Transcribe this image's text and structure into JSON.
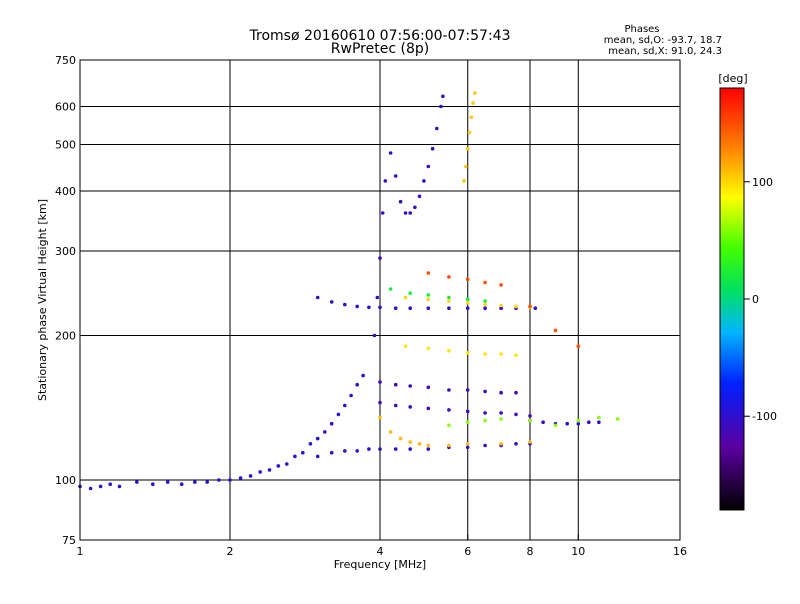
{
  "chart_data": {
    "type": "scatter",
    "title": "Tromsø 20160610 07:56:00-07:57:43",
    "subtitle": "RwPretec (8p)",
    "xlabel": "Frequency [MHz]",
    "ylabel": "Stationary phase Virtual Height [km]",
    "x_scale": "log",
    "y_scale": "log",
    "xlim": [
      1,
      16
    ],
    "ylim": [
      75,
      750
    ],
    "x_ticks": [
      1,
      2,
      4,
      6,
      8,
      10,
      16
    ],
    "x_tick_labels": [
      "1",
      "2",
      "4",
      "6",
      "8",
      "10",
      "16"
    ],
    "y_ticks": [
      75,
      100,
      200,
      300,
      400,
      500,
      600,
      750
    ],
    "y_tick_labels": [
      "75",
      "100",
      "200",
      "300",
      "400",
      "500",
      "600",
      "750"
    ],
    "x_grid": [
      2,
      4,
      6,
      8,
      10
    ],
    "y_grid": [
      100,
      200,
      300,
      400,
      500,
      600
    ],
    "info_box": {
      "heading": "Phases",
      "line_o": "mean, sd,O: -93.7, 18.7",
      "line_x": "mean, sd,X:  91.0, 24.3"
    },
    "colorbar": {
      "label": "[deg]",
      "range": [
        -180,
        180
      ],
      "ticks": [
        100,
        0,
        -100
      ],
      "tick_labels": [
        "100",
        "0",
        "-100"
      ]
    },
    "series": [
      {
        "color_phase": -95,
        "points": [
          [
            1.0,
            97
          ],
          [
            1.05,
            96
          ],
          [
            1.1,
            97
          ],
          [
            1.15,
            98
          ],
          [
            1.2,
            97
          ],
          [
            1.3,
            99
          ],
          [
            1.4,
            98
          ],
          [
            1.5,
            99
          ],
          [
            1.6,
            98
          ],
          [
            1.7,
            99
          ],
          [
            1.8,
            99
          ],
          [
            1.9,
            100
          ],
          [
            2.0,
            100
          ],
          [
            2.1,
            101
          ],
          [
            2.2,
            102
          ],
          [
            2.3,
            104
          ],
          [
            2.4,
            105
          ],
          [
            2.5,
            107
          ],
          [
            2.6,
            108
          ],
          [
            2.7,
            112
          ],
          [
            2.8,
            114
          ],
          [
            2.9,
            119
          ],
          [
            3.0,
            122
          ],
          [
            3.1,
            126
          ],
          [
            3.2,
            131
          ],
          [
            3.3,
            137
          ],
          [
            3.4,
            143
          ],
          [
            3.5,
            150
          ],
          [
            3.6,
            158
          ],
          [
            3.7,
            165
          ]
        ]
      },
      {
        "color_phase": -100,
        "points": [
          [
            3.0,
            112
          ],
          [
            3.2,
            114
          ],
          [
            3.4,
            115
          ],
          [
            3.6,
            115
          ],
          [
            3.8,
            116
          ],
          [
            4.0,
            116
          ],
          [
            4.3,
            116
          ],
          [
            4.6,
            116
          ],
          [
            5.0,
            116
          ],
          [
            5.5,
            117
          ],
          [
            6.0,
            117
          ],
          [
            6.5,
            118
          ],
          [
            7.0,
            118
          ],
          [
            7.5,
            119
          ],
          [
            8.0,
            119
          ]
        ]
      },
      {
        "color_phase": -100,
        "points": [
          [
            3.0,
            240
          ],
          [
            3.2,
            235
          ],
          [
            3.4,
            232
          ],
          [
            3.6,
            230
          ],
          [
            3.8,
            229
          ],
          [
            4.0,
            229
          ],
          [
            4.3,
            228
          ],
          [
            4.6,
            228
          ],
          [
            5.0,
            228
          ],
          [
            5.5,
            228
          ],
          [
            6.0,
            228
          ],
          [
            6.5,
            228
          ],
          [
            7.0,
            228
          ],
          [
            7.5,
            228
          ],
          [
            8.2,
            228
          ]
        ]
      },
      {
        "color_phase": -105,
        "points": [
          [
            3.9,
            200
          ],
          [
            3.95,
            240
          ],
          [
            4.0,
            290
          ],
          [
            4.05,
            360
          ],
          [
            4.1,
            420
          ],
          [
            4.2,
            480
          ],
          [
            4.3,
            430
          ],
          [
            4.4,
            380
          ],
          [
            4.5,
            360
          ],
          [
            4.6,
            360
          ],
          [
            4.7,
            370
          ],
          [
            4.8,
            390
          ],
          [
            4.9,
            420
          ],
          [
            5.0,
            450
          ],
          [
            5.1,
            490
          ],
          [
            5.2,
            540
          ],
          [
            5.3,
            600
          ],
          [
            5.35,
            630
          ]
        ]
      },
      {
        "color_phase": -110,
        "points": [
          [
            4.0,
            160
          ],
          [
            4.3,
            158
          ],
          [
            4.6,
            157
          ],
          [
            5.0,
            156
          ],
          [
            5.5,
            154
          ],
          [
            6.0,
            154
          ],
          [
            6.5,
            153
          ],
          [
            7.0,
            152
          ],
          [
            7.5,
            152
          ]
        ]
      },
      {
        "color_phase": -110,
        "points": [
          [
            4.0,
            145
          ],
          [
            4.3,
            143
          ],
          [
            4.6,
            142
          ],
          [
            5.0,
            141
          ],
          [
            5.5,
            140
          ],
          [
            6.0,
            139
          ],
          [
            6.5,
            138
          ],
          [
            7.0,
            138
          ],
          [
            7.5,
            137
          ],
          [
            8.0,
            136
          ]
        ]
      },
      {
        "color_phase": -100,
        "points": [
          [
            8.0,
            133
          ],
          [
            8.5,
            132
          ],
          [
            9.0,
            131
          ],
          [
            9.5,
            131
          ],
          [
            10.0,
            131
          ],
          [
            10.5,
            132
          ],
          [
            11.0,
            132
          ]
        ]
      },
      {
        "color_phase": 105,
        "points": [
          [
            5.9,
            420
          ],
          [
            5.95,
            450
          ],
          [
            6.0,
            490
          ],
          [
            6.05,
            530
          ],
          [
            6.1,
            570
          ],
          [
            6.15,
            610
          ],
          [
            6.2,
            640
          ]
        ]
      },
      {
        "color_phase": 110,
        "points": [
          [
            4.0,
            135
          ],
          [
            4.2,
            126
          ],
          [
            4.4,
            122
          ],
          [
            4.6,
            120
          ],
          [
            4.8,
            119
          ],
          [
            5.0,
            118
          ],
          [
            5.5,
            118
          ],
          [
            6.0,
            119
          ],
          [
            7.0,
            119
          ],
          [
            8.0,
            120
          ]
        ]
      },
      {
        "color_phase": 100,
        "points": [
          [
            4.5,
            240
          ],
          [
            5.0,
            238
          ],
          [
            5.5,
            236
          ],
          [
            6.0,
            234
          ],
          [
            6.5,
            232
          ],
          [
            7.0,
            231
          ],
          [
            7.5,
            230
          ],
          [
            8.0,
            229
          ]
        ]
      },
      {
        "color_phase": 95,
        "points": [
          [
            4.5,
            190
          ],
          [
            5.0,
            188
          ],
          [
            5.5,
            186
          ],
          [
            6.0,
            184
          ],
          [
            6.5,
            183
          ],
          [
            7.0,
            183
          ],
          [
            7.5,
            182
          ]
        ]
      },
      {
        "color_phase": 20,
        "points": [
          [
            4.2,
            250
          ],
          [
            4.6,
            245
          ],
          [
            5.0,
            243
          ],
          [
            5.5,
            240
          ],
          [
            6.0,
            238
          ],
          [
            6.5,
            236
          ]
        ]
      },
      {
        "color_phase": 60,
        "points": [
          [
            5.5,
            130
          ],
          [
            6.0,
            132
          ],
          [
            6.5,
            133
          ],
          [
            7.0,
            134
          ],
          [
            8.0,
            133
          ],
          [
            9.0,
            130
          ],
          [
            10.0,
            133
          ],
          [
            11.0,
            135
          ],
          [
            12.0,
            134
          ]
        ]
      },
      {
        "color_phase": 150,
        "points": [
          [
            5.0,
            270
          ],
          [
            5.5,
            265
          ],
          [
            6.0,
            262
          ],
          [
            6.5,
            258
          ],
          [
            7.0,
            255
          ],
          [
            8.0,
            230
          ],
          [
            9.0,
            205
          ],
          [
            10.0,
            190
          ]
        ]
      }
    ]
  }
}
